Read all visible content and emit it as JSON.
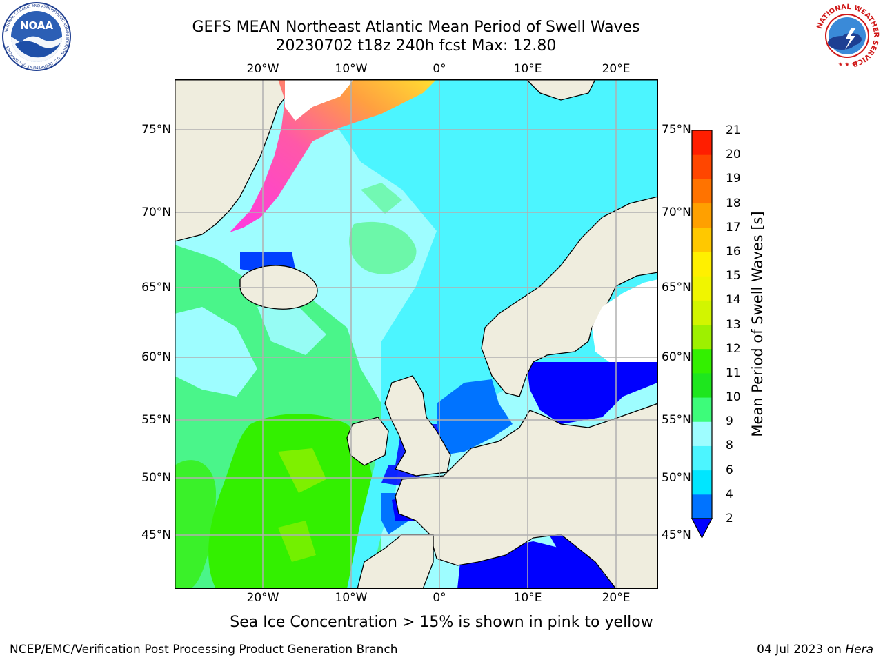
{
  "title": {
    "line1": "GEFS MEAN Northeast Atlantic Mean Period of Swell Waves",
    "line2": "20230702 t18z 240h fcst   Max: 12.80"
  },
  "map": {
    "lon_labels": [
      "20°W",
      "10°W",
      "0°",
      "10°E",
      "20°E"
    ],
    "lat_labels": [
      "75°N",
      "70°N",
      "65°N",
      "60°N",
      "55°N",
      "50°N",
      "45°N"
    ],
    "colors": {
      "land": "#efedde",
      "ice": "#ffffff",
      "grid": "#b0b0b0",
      "coast": "#000000"
    }
  },
  "colorbar": {
    "label": "Mean Period of Swell Waves [s]",
    "ticks": [
      "2",
      "4",
      "6",
      "8",
      "9",
      "10",
      "11",
      "12",
      "13",
      "14",
      "15",
      "16",
      "17",
      "18",
      "19",
      "20",
      "21"
    ],
    "colors": [
      "#0000ff",
      "#0073ff",
      "#00e6ff",
      "#4cf5ff",
      "#9efdff",
      "#3dfc7a",
      "#1ee61e",
      "#33f000",
      "#9ef000",
      "#d2f500",
      "#f0f500",
      "#fff000",
      "#ffc800",
      "#ffa000",
      "#ff7300",
      "#ff4600",
      "#ff1e00"
    ]
  },
  "note": "Sea Ice Concentration > 15% is shown in pink to yellow",
  "footer": {
    "left": "NCEP/EMC/Verification Post Processing Product Generation Branch",
    "date": "04 Jul 2023 on ",
    "host": "Hera"
  },
  "logos": {
    "noaa": {
      "text": "NOAA",
      "ring_text": "NATIONAL OCEANIC AND ATMOSPHERIC ADMINISTRATION · U.S. DEPARTMENT OF COMMERCE"
    },
    "nws": {
      "ring_text": "NATIONAL WEATHER SERVICE"
    }
  }
}
